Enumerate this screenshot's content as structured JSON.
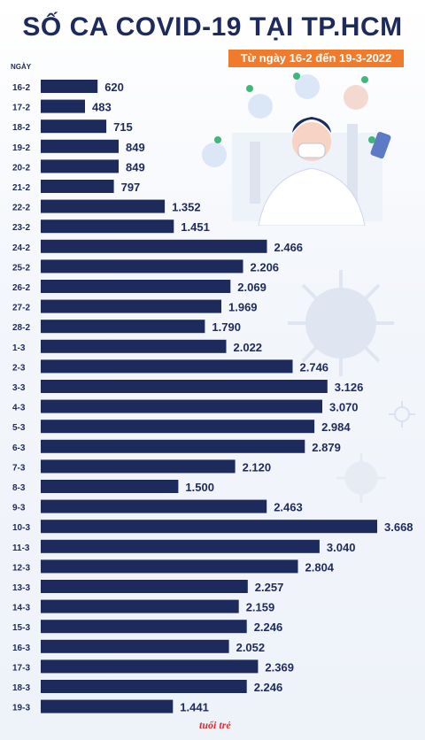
{
  "title": "SỐ CA COVID-19 TẠI TP.HCM",
  "subtitle": "Từ ngày 16-2 đến 19-3-2022",
  "logo_text": "tuổi trẻ",
  "colors": {
    "bar": "#1d2a5c",
    "title": "#1d2a5c",
    "badge": "#f07b2c",
    "text": "#1d2a5c"
  },
  "chart_data": {
    "type": "bar",
    "orientation": "horizontal",
    "ylabel": "NGÀY",
    "categories": [
      "16-2",
      "17-2",
      "18-2",
      "19-2",
      "20-2",
      "21-2",
      "22-2",
      "23-2",
      "24-2",
      "25-2",
      "26-2",
      "27-2",
      "28-2",
      "1-3",
      "2-3",
      "3-3",
      "4-3",
      "5-3",
      "6-3",
      "7-3",
      "8-3",
      "9-3",
      "10-3",
      "11-3",
      "12-3",
      "13-3",
      "14-3",
      "15-3",
      "16-3",
      "17-3",
      "18-3",
      "19-3"
    ],
    "values": [
      620,
      483,
      715,
      849,
      849,
      797,
      1352,
      1451,
      2466,
      2206,
      2069,
      1969,
      1790,
      2022,
      2746,
      3126,
      3070,
      2984,
      2879,
      2120,
      1500,
      2463,
      3668,
      3040,
      2804,
      2257,
      2159,
      2246,
      2052,
      2369,
      2246,
      1441
    ],
    "value_labels": [
      "620",
      "483",
      "715",
      "849",
      "849",
      "797",
      "1.352",
      "1.451",
      "2.466",
      "2.206",
      "2.069",
      "1.969",
      "1.790",
      "2.022",
      "2.746",
      "3.126",
      "3.070",
      "2.984",
      "2.879",
      "2.120",
      "1.500",
      "2.463",
      "3.668",
      "3.040",
      "2.804",
      "2.257",
      "2.159",
      "2.246",
      "2.052",
      "2.369",
      "2.246",
      "1.441"
    ],
    "grid": false,
    "legend": "none"
  }
}
